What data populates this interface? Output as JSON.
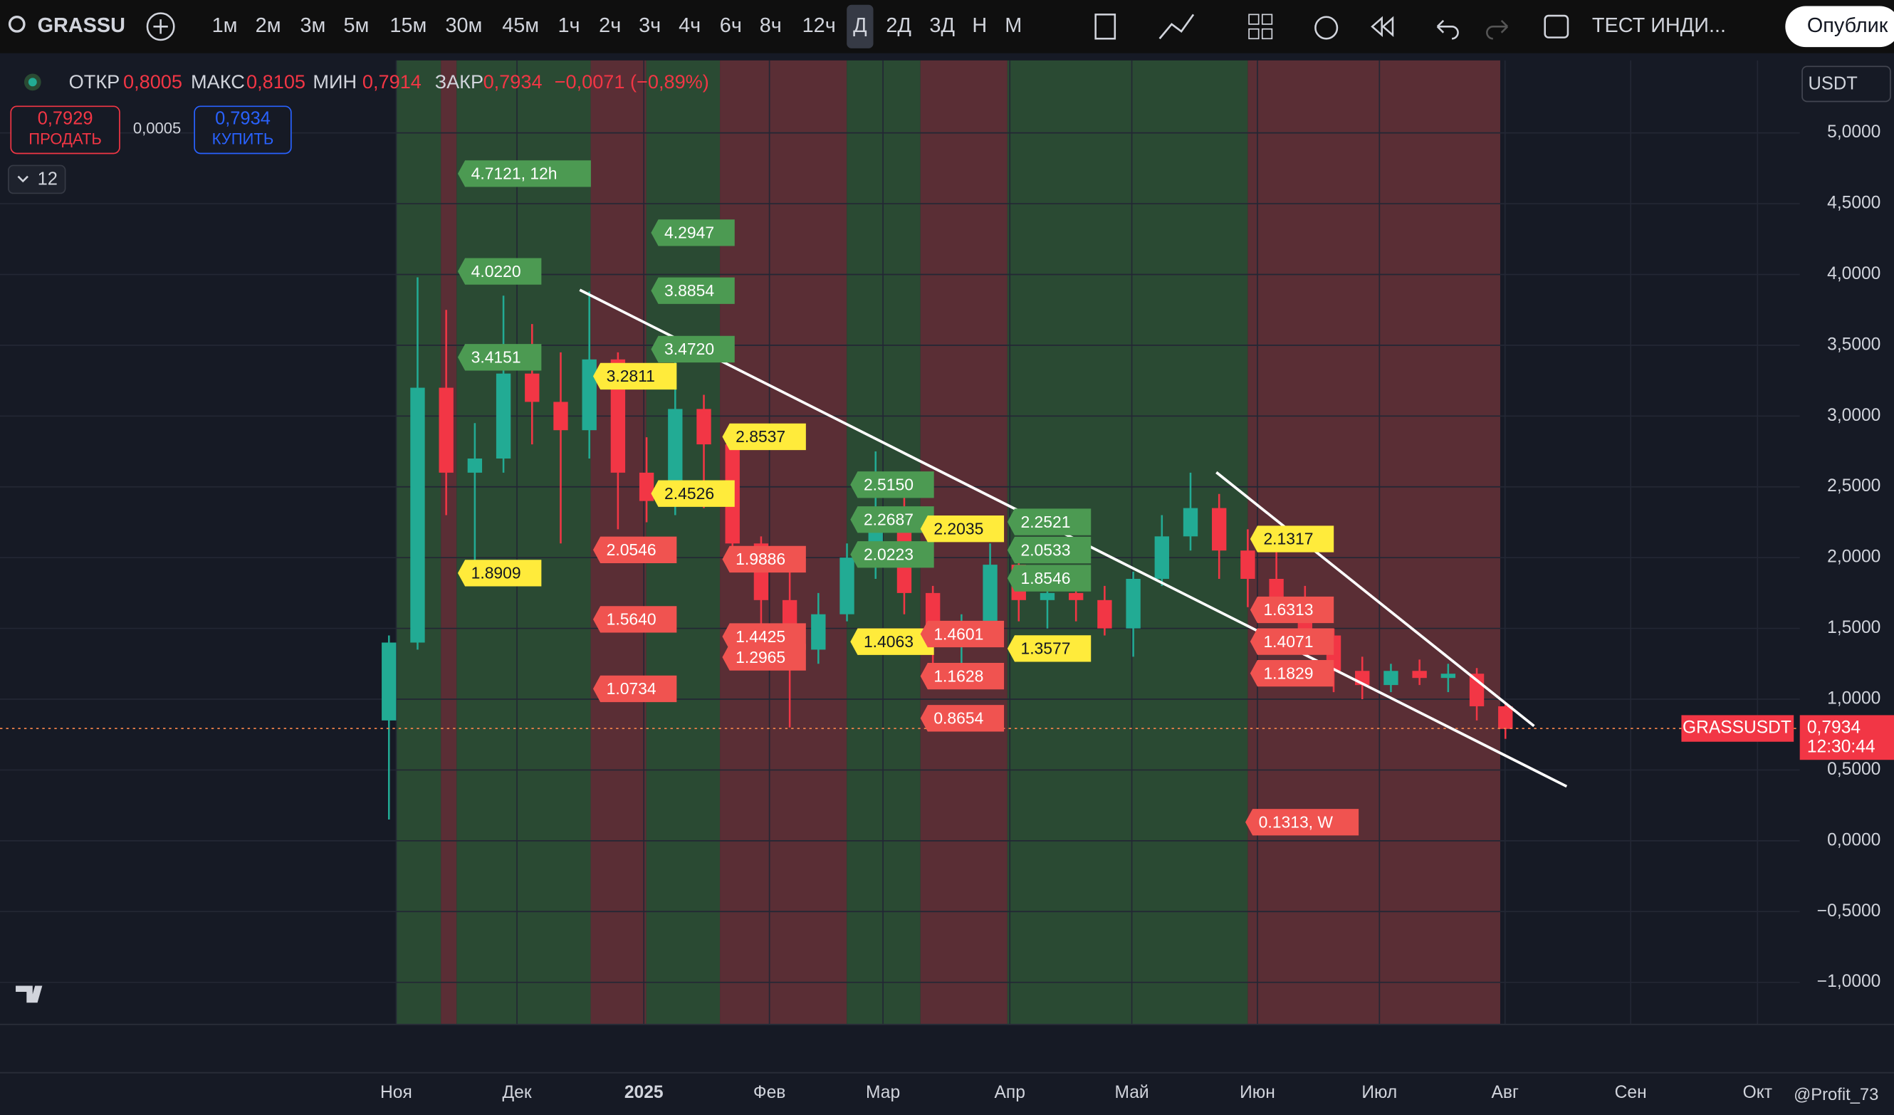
{
  "toolbar": {
    "symbol": "GRASSU",
    "intervals": [
      "1м",
      "2м",
      "3м",
      "5м",
      "15м",
      "30м",
      "45м",
      "1ч",
      "2ч",
      "3ч",
      "4ч",
      "6ч",
      "8ч",
      "12ч",
      "Д",
      "2Д",
      "3Д",
      "Н",
      "М"
    ],
    "active_interval": "Д",
    "indicator": "ТЕСТ ИНДИ...",
    "publish": "Опублик"
  },
  "header": {
    "open_label": "ОТКР",
    "open": "0,8005",
    "high_label": "МАКС",
    "high": "0,8105",
    "low_label": "МИН",
    "low": "0,7914",
    "close_label": "ЗАКР",
    "close": "0,7934",
    "change": "−0,0071 (−0,89%)",
    "sell_price": "0,7929",
    "sell": "ПРОДАТЬ",
    "spread": "0,0005",
    "buy_price": "0,7934",
    "buy": "КУПИТЬ",
    "indicators_count": "12",
    "currency": "USDT"
  },
  "watermark": "@Profit_73",
  "chart_data": {
    "type": "candlestick",
    "ylim": [
      -1.297,
      5.512
    ],
    "yticks": [
      {
        "value": -1,
        "label": "−1,0000"
      },
      {
        "value": -0.5,
        "label": "−0,5000"
      },
      {
        "value": 0,
        "label": "0,0000"
      },
      {
        "value": 0.5,
        "label": "0,5000"
      },
      {
        "value": 1,
        "label": "1,0000"
      },
      {
        "value": 1.5,
        "label": "1,5000"
      },
      {
        "value": 2,
        "label": "2,0000"
      },
      {
        "value": 2.5,
        "label": "2,5000"
      },
      {
        "value": 3,
        "label": "3,0000"
      },
      {
        "value": 3.5,
        "label": "3,5000"
      },
      {
        "value": 4,
        "label": "4,0000"
      },
      {
        "value": 4.5,
        "label": "4,5000"
      },
      {
        "value": 5,
        "label": "5,0000"
      }
    ],
    "x_labels": [
      "Ноя",
      "Дек",
      "2025",
      "Фев",
      "Мар",
      "Апр",
      "Май",
      "Июн",
      "Июл",
      "Авг",
      "Сен",
      "Окт"
    ],
    "up_color": "#22ab94",
    "down_color": "#f23645",
    "candles": [
      {
        "open": 0.85,
        "high": 1.45,
        "low": 0.15,
        "close": 1.4
      },
      {
        "open": 1.4,
        "high": 3.98,
        "low": 1.35,
        "close": 3.2
      },
      {
        "open": 3.2,
        "high": 3.75,
        "low": 2.3,
        "close": 2.6
      },
      {
        "open": 2.6,
        "high": 2.95,
        "low": 1.85,
        "close": 2.7
      },
      {
        "open": 2.7,
        "high": 3.85,
        "low": 2.6,
        "close": 3.3
      },
      {
        "open": 3.3,
        "high": 3.65,
        "low": 2.8,
        "close": 3.1
      },
      {
        "open": 3.1,
        "high": 3.45,
        "low": 2.1,
        "close": 2.9
      },
      {
        "open": 2.9,
        "high": 3.88,
        "low": 2.7,
        "close": 3.4
      },
      {
        "open": 3.4,
        "high": 3.45,
        "low": 2.2,
        "close": 2.6
      },
      {
        "open": 2.6,
        "high": 2.85,
        "low": 2.25,
        "close": 2.4
      },
      {
        "open": 2.4,
        "high": 3.5,
        "low": 2.3,
        "close": 3.05
      },
      {
        "open": 3.05,
        "high": 3.15,
        "low": 2.35,
        "close": 2.8
      },
      {
        "open": 2.8,
        "high": 2.9,
        "low": 2.0,
        "close": 2.1
      },
      {
        "open": 2.1,
        "high": 2.15,
        "low": 1.4,
        "close": 1.7
      },
      {
        "open": 1.7,
        "high": 1.9,
        "low": 0.8,
        "close": 1.35
      },
      {
        "open": 1.35,
        "high": 1.75,
        "low": 1.25,
        "close": 1.6
      },
      {
        "open": 1.6,
        "high": 2.1,
        "low": 1.55,
        "close": 2.0
      },
      {
        "open": 2.0,
        "high": 2.75,
        "low": 1.85,
        "close": 2.3
      },
      {
        "open": 2.3,
        "high": 2.6,
        "low": 1.6,
        "close": 1.75
      },
      {
        "open": 1.75,
        "high": 1.8,
        "low": 1.25,
        "close": 1.45
      },
      {
        "open": 1.45,
        "high": 1.6,
        "low": 1.25,
        "close": 1.5
      },
      {
        "open": 1.5,
        "high": 2.1,
        "low": 1.45,
        "close": 1.95
      },
      {
        "open": 1.95,
        "high": 2.05,
        "low": 1.55,
        "close": 1.7
      },
      {
        "open": 1.7,
        "high": 1.85,
        "low": 1.5,
        "close": 1.75
      },
      {
        "open": 1.75,
        "high": 1.85,
        "low": 1.55,
        "close": 1.7
      },
      {
        "open": 1.7,
        "high": 1.8,
        "low": 1.45,
        "close": 1.5
      },
      {
        "open": 1.5,
        "high": 1.9,
        "low": 1.3,
        "close": 1.85
      },
      {
        "open": 1.85,
        "high": 2.3,
        "low": 1.8,
        "close": 2.15
      },
      {
        "open": 2.15,
        "high": 2.6,
        "low": 2.05,
        "close": 2.35
      },
      {
        "open": 2.35,
        "high": 2.45,
        "low": 1.85,
        "close": 2.05
      },
      {
        "open": 2.05,
        "high": 2.2,
        "low": 1.65,
        "close": 1.85
      },
      {
        "open": 1.85,
        "high": 2.15,
        "low": 1.6,
        "close": 1.7
      },
      {
        "open": 1.7,
        "high": 1.8,
        "low": 1.35,
        "close": 1.45
      },
      {
        "open": 1.45,
        "high": 1.5,
        "low": 1.05,
        "close": 1.2
      },
      {
        "open": 1.2,
        "high": 1.3,
        "low": 1.0,
        "close": 1.1
      },
      {
        "open": 1.1,
        "high": 1.25,
        "low": 1.05,
        "close": 1.2
      },
      {
        "open": 1.2,
        "high": 1.28,
        "low": 1.1,
        "close": 1.15
      },
      {
        "open": 1.15,
        "high": 1.25,
        "low": 1.05,
        "close": 1.18
      },
      {
        "open": 1.18,
        "high": 1.22,
        "low": 0.85,
        "close": 0.95
      },
      {
        "open": 0.95,
        "high": 0.98,
        "low": 0.72,
        "close": 0.79
      }
    ],
    "annotations": [
      {
        "label": "4.7121, 12h",
        "value": 4.7121,
        "color": "#4c9a52"
      },
      {
        "label": "4.0220",
        "value": 4.022,
        "color": "#4c9a52"
      },
      {
        "label": "3.4151",
        "value": 3.4151,
        "color": "#4c9a52"
      },
      {
        "label": "1.8909",
        "value": 1.8909,
        "color": "#ffeb3b"
      },
      {
        "label": "4.2947",
        "value": 4.2947,
        "color": "#4c9a52"
      },
      {
        "label": "3.8854",
        "value": 3.8854,
        "color": "#4c9a52"
      },
      {
        "label": "3.4720",
        "value": 3.472,
        "color": "#4c9a52"
      },
      {
        "label": "3.2811",
        "value": 3.2811,
        "color": "#ffeb3b"
      },
      {
        "label": "2.8537",
        "value": 2.8537,
        "color": "#ffeb3b"
      },
      {
        "label": "2.4526",
        "value": 2.4526,
        "color": "#ffeb3b"
      },
      {
        "label": "2.0546",
        "value": 2.0546,
        "color": "#f05350"
      },
      {
        "label": "1.5640",
        "value": 1.564,
        "color": "#f05350"
      },
      {
        "label": "1.0734",
        "value": 1.0734,
        "color": "#f05350"
      },
      {
        "label": "1.9886",
        "value": 1.9886,
        "color": "#f05350"
      },
      {
        "label": "1.4425",
        "value": 1.4425,
        "color": "#f05350"
      },
      {
        "label": "1.2965",
        "value": 1.2965,
        "color": "#f05350"
      },
      {
        "label": "2.5150",
        "value": 2.515,
        "color": "#4c9a52"
      },
      {
        "label": "2.2687",
        "value": 2.2687,
        "color": "#4c9a52"
      },
      {
        "label": "2.0223",
        "value": 2.0223,
        "color": "#4c9a52"
      },
      {
        "label": "2.2035",
        "value": 2.2035,
        "color": "#ffeb3b"
      },
      {
        "label": "1.4063",
        "value": 1.4063,
        "color": "#ffeb3b"
      },
      {
        "label": "1.4601",
        "value": 1.4601,
        "color": "#f05350"
      },
      {
        "label": "1.1628",
        "value": 1.1628,
        "color": "#f05350"
      },
      {
        "label": "0.8654",
        "value": 0.8654,
        "color": "#f05350"
      },
      {
        "label": "2.2521",
        "value": 2.2521,
        "color": "#4c9a52"
      },
      {
        "label": "2.0533",
        "value": 2.0533,
        "color": "#4c9a52"
      },
      {
        "label": "1.8546",
        "value": 1.8546,
        "color": "#4c9a52"
      },
      {
        "label": "1.3577",
        "value": 1.3577,
        "color": "#ffeb3b"
      },
      {
        "label": "2.1317",
        "value": 2.1317,
        "color": "#ffeb3b"
      },
      {
        "label": "1.6313",
        "value": 1.6313,
        "color": "#f05350"
      },
      {
        "label": "1.4071",
        "value": 1.4071,
        "color": "#f05350"
      },
      {
        "label": "1.1829",
        "value": 1.1829,
        "color": "#f05350"
      },
      {
        "label": "0.1313, W",
        "value": 0.1313,
        "color": "#f05350"
      }
    ],
    "current_price": {
      "name": "GRASSUSDT",
      "value": 0.7934,
      "label": "0,7934",
      "countdown": "12:30:44",
      "color": "#f23645"
    }
  }
}
